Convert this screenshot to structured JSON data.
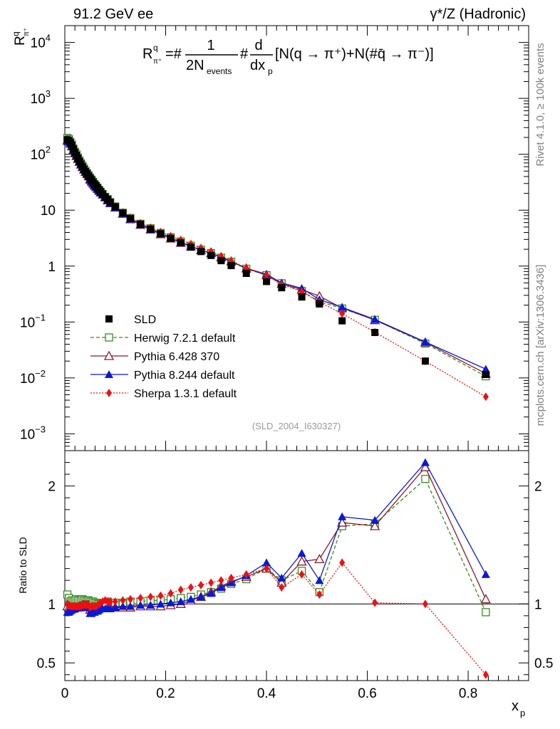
{
  "header": {
    "left": "91.2 GeV ee",
    "right": "γ*/Z (Hadronic)"
  },
  "side_labels": {
    "rivet": "Rivet 4.1.0, ≥ 100k events",
    "mcplots": "mcplots.cern.ch [arXiv:1306.3436]"
  },
  "analysis_tag": "(SLD_2004_I630327)",
  "formula": {
    "lhs_R": "R",
    "lhs_sup": "q",
    "lhs_sub": "π⁺",
    "eq": "=#",
    "frac_num": "1",
    "frac_den": "2N",
    "frac_den_sub": "events",
    "hash": "#",
    "d_num": "d",
    "d_den": "dx",
    "d_den_sub": "p",
    "rest": "[N(q → π⁺)+N(#q̄ → π⁻)]"
  },
  "colors": {
    "SLD": "#000000",
    "Herwig": "#3a8a20",
    "Pythia6": "#8b1a2c",
    "Pythia8": "#0a18d8",
    "Sherpa": "#ee1010"
  },
  "chart_data": [
    {
      "type": "scatter",
      "name": "main",
      "ylabel_R": "R",
      "ylabel_sup": "q",
      "ylabel_sub": "π⁺",
      "yscale": "log",
      "ylim": [
        0.0005,
        20000
      ],
      "xlim": [
        0,
        0.92
      ],
      "y_ticks": [
        {
          "v": 0.001,
          "label": "10",
          "exp": "−3"
        },
        {
          "v": 0.01,
          "label": "10",
          "exp": "−2"
        },
        {
          "v": 0.1,
          "label": "10",
          "exp": "−1"
        },
        {
          "v": 1,
          "label": "1",
          "exp": ""
        },
        {
          "v": 10,
          "label": "10",
          "exp": ""
        },
        {
          "v": 100,
          "label": "10",
          "exp": "2"
        },
        {
          "v": 1000,
          "label": "10",
          "exp": "3"
        },
        {
          "v": 10000,
          "label": "10",
          "exp": "4"
        }
      ],
      "x": [
        0.005,
        0.008,
        0.011,
        0.014,
        0.017,
        0.02,
        0.023,
        0.026,
        0.029,
        0.032,
        0.035,
        0.038,
        0.041,
        0.044,
        0.047,
        0.05,
        0.053,
        0.056,
        0.059,
        0.062,
        0.065,
        0.068,
        0.071,
        0.075,
        0.08,
        0.085,
        0.09,
        0.1,
        0.115,
        0.13,
        0.15,
        0.17,
        0.19,
        0.21,
        0.23,
        0.25,
        0.27,
        0.29,
        0.31,
        0.33,
        0.36,
        0.4,
        0.43,
        0.47,
        0.505,
        0.55,
        0.615,
        0.715,
        0.835
      ],
      "series": [
        {
          "name": "SLD",
          "key": "SLD",
          "marker": "square_filled",
          "line": "none",
          "values": [
            182,
            178,
            162,
            145,
            124,
            108,
            96,
            85,
            75,
            67,
            60,
            54,
            49,
            45,
            41,
            37.5,
            34.5,
            31.5,
            29,
            27,
            25,
            23,
            21.3,
            19.5,
            17.3,
            15.5,
            13.8,
            11.5,
            8.9,
            7.1,
            5.6,
            4.6,
            3.8,
            3.15,
            2.62,
            2.18,
            1.82,
            1.55,
            1.25,
            1.02,
            0.74,
            0.53,
            0.41,
            0.28,
            0.21,
            0.105,
            0.065,
            0.02,
            0.0115
          ]
        },
        {
          "name": "Herwig 7.2.1 default",
          "key": "Herwig",
          "marker": "square_open",
          "line": "dashed",
          "ratio": [
            1.08,
            1.05,
            1.02,
            1.03,
            1.02,
            1.03,
            1.04,
            1.03,
            1.03,
            1.03,
            1.04,
            1.03,
            1.03,
            1.02,
            1.03,
            1.02,
            1.02,
            1.02,
            1.01,
            1.01,
            1.0,
            1.0,
            1.0,
            1.0,
            1.0,
            1.02,
            1.01,
            1.01,
            1.01,
            1.02,
            1.02,
            1.03,
            1.03,
            1.04,
            1.05,
            1.06,
            1.08,
            1.1,
            1.13,
            1.17,
            1.21,
            1.3,
            1.2,
            1.28,
            1.1,
            1.66,
            1.68,
            2.06,
            0.93
          ]
        },
        {
          "name": "Pythia 6.428 370",
          "key": "Pythia6",
          "marker": "triangle_open",
          "line": "solid",
          "ratio": [
            0.98,
            0.97,
            0.97,
            0.96,
            0.96,
            0.97,
            0.97,
            0.97,
            0.98,
            0.98,
            0.99,
            0.99,
            0.99,
            0.99,
            0.99,
            0.95,
            0.95,
            0.96,
            0.96,
            0.96,
            0.97,
            0.98,
            0.98,
            0.99,
            1.0,
            0.97,
            0.97,
            0.97,
            0.97,
            0.97,
            0.98,
            0.98,
            0.98,
            0.99,
            1.0,
            1.03,
            1.06,
            1.1,
            1.15,
            1.19,
            1.23,
            1.3,
            1.18,
            1.36,
            1.38,
            1.69,
            1.66,
            2.16,
            1.04
          ]
        },
        {
          "name": "Pythia 8.244 default",
          "key": "Pythia8",
          "marker": "triangle_filled",
          "line": "solid",
          "ratio": [
            0.93,
            0.93,
            0.94,
            0.95,
            0.96,
            0.96,
            0.97,
            0.97,
            0.97,
            0.97,
            0.97,
            0.97,
            0.97,
            0.97,
            0.97,
            0.92,
            0.92,
            0.93,
            0.93,
            0.94,
            0.94,
            0.95,
            0.96,
            0.96,
            0.96,
            0.96,
            0.96,
            0.97,
            0.98,
            0.98,
            0.99,
            0.99,
            1.0,
            1.01,
            1.02,
            1.04,
            1.06,
            1.09,
            1.14,
            1.18,
            1.24,
            1.35,
            1.22,
            1.43,
            1.2,
            1.74,
            1.71,
            2.2,
            1.25
          ]
        },
        {
          "name": "Sherpa 1.3.1 default",
          "key": "Sherpa",
          "marker": "diamond_filled",
          "line": "dotted",
          "ratio": [
            1.0,
            0.99,
            0.98,
            0.98,
            0.98,
            0.98,
            0.98,
            0.98,
            0.98,
            0.98,
            0.99,
            0.99,
            0.99,
            0.99,
            0.99,
            0.97,
            0.98,
            0.98,
            0.98,
            0.98,
            0.99,
            1.0,
            1.01,
            1.02,
            1.03,
            1.02,
            1.02,
            1.02,
            1.03,
            1.04,
            1.05,
            1.06,
            1.07,
            1.09,
            1.12,
            1.14,
            1.16,
            1.18,
            1.2,
            1.22,
            1.25,
            1.3,
            1.14,
            1.25,
            1.08,
            1.35,
            1.01,
            1.0,
            0.4
          ]
        }
      ],
      "legend_position": "lower-left"
    },
    {
      "type": "scatter",
      "name": "ratio",
      "ylabel": "Ratio to SLD",
      "xlabel": "x",
      "xlabel_sub": "p",
      "ylim": [
        0.35,
        2.3
      ],
      "xlim": [
        0,
        0.92
      ],
      "reference": 1,
      "y_ticks": [
        {
          "v": 0.5,
          "label": "0.5"
        },
        {
          "v": 1,
          "label": "1"
        },
        {
          "v": 2,
          "label": "2"
        }
      ],
      "x_ticks": [
        {
          "v": 0,
          "label": "0"
        },
        {
          "v": 0.2,
          "label": "0.2"
        },
        {
          "v": 0.4,
          "label": "0.4"
        },
        {
          "v": 0.6,
          "label": "0.6"
        },
        {
          "v": 0.8,
          "label": "0.8"
        }
      ]
    }
  ]
}
